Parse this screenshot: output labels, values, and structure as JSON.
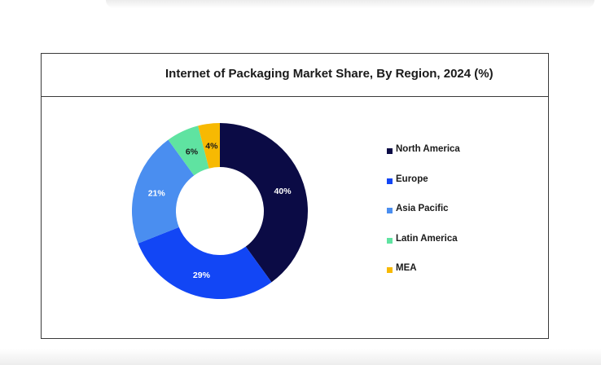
{
  "chart_data": {
    "type": "pie",
    "title": "Internet of Packaging Market Share, By Region, 2024 (%)",
    "categories": [
      "North America",
      "Europe",
      "Asia Pacific",
      "Latin America",
      "MEA"
    ],
    "values": [
      40,
      29,
      21,
      6,
      4
    ],
    "labels": [
      "40%",
      "29%",
      "21%",
      "6%",
      "4%"
    ],
    "colors": [
      "#0b0b45",
      "#1246f5",
      "#4a8ef0",
      "#5fe3a1",
      "#f7b902"
    ],
    "label_colors": [
      "#ffffff",
      "#ffffff",
      "#ffffff",
      "#1a1a1a",
      "#1a1a1a"
    ],
    "donut": true,
    "legend_position": "right"
  }
}
